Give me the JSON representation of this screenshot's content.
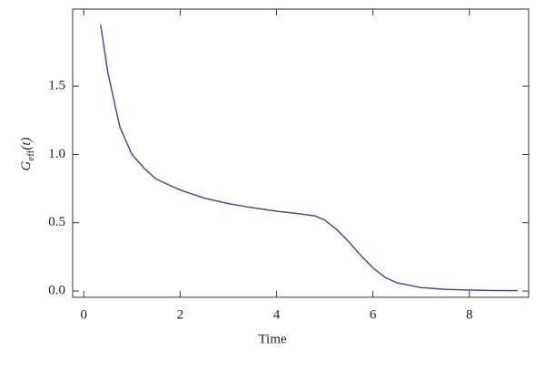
{
  "chart_data": {
    "type": "line",
    "xlabel": "Time",
    "ylabel": [
      "G",
      "eff",
      "(t)"
    ],
    "x": [
      0.35,
      0.5,
      0.75,
      1.0,
      1.25,
      1.5,
      2.0,
      2.5,
      3.0,
      3.5,
      4.0,
      4.5,
      4.8,
      5.0,
      5.25,
      5.5,
      5.75,
      6.0,
      6.25,
      6.5,
      7.0,
      7.5,
      8.0,
      8.5,
      9.0
    ],
    "series": [
      {
        "color": "#4b4b9b",
        "values": [
          1.95,
          1.6,
          1.2,
          1.0,
          0.9,
          0.82,
          0.74,
          0.68,
          0.64,
          0.61,
          0.585,
          0.565,
          0.55,
          0.52,
          0.45,
          0.36,
          0.26,
          0.17,
          0.1,
          0.06,
          0.025,
          0.012,
          0.007,
          0.004,
          0.003
        ]
      }
    ],
    "xlim": [
      -0.23,
      9.23
    ],
    "ylim": [
      -0.046,
      2.065
    ],
    "xticks": [
      0,
      2,
      4,
      6,
      8
    ],
    "yticks": [
      {
        "value": 0,
        "label": "0.0"
      },
      0.5,
      {
        "value": 1,
        "label": "1.0"
      },
      1.5
    ]
  }
}
